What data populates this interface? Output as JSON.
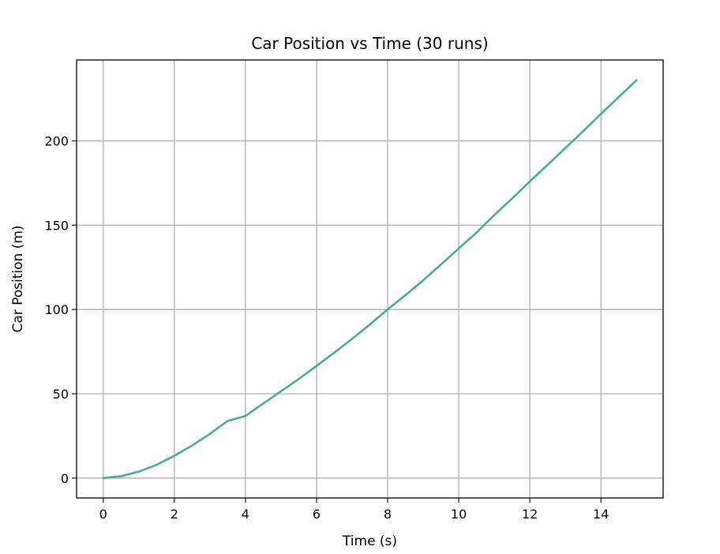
{
  "chart_data": {
    "type": "line",
    "title": "Car Position vs Time (30 runs)",
    "xlabel": "Time (s)",
    "ylabel": "Car Position (m)",
    "xlim": [
      -0.75,
      15.75
    ],
    "ylim": [
      -11.8,
      248
    ],
    "xticks": [
      0,
      2,
      4,
      6,
      8,
      10,
      12,
      14
    ],
    "yticks": [
      0,
      50,
      100,
      150,
      200
    ],
    "grid": true,
    "line_color": "#4dab94",
    "series": [
      {
        "x": [
          0,
          0.5,
          1,
          1.5,
          2,
          2.5,
          3,
          3.5,
          4,
          4.5,
          5,
          5.5,
          6,
          6.5,
          7,
          7.5,
          8,
          8.5,
          9,
          9.5,
          10,
          10.5,
          11,
          11.5,
          12,
          12.5,
          13,
          13.5,
          14,
          14.5,
          15
        ],
        "y": [
          0,
          1.1,
          3.8,
          7.9,
          13.2,
          19.3,
          26.2,
          33.9,
          36.8,
          44.2,
          51.5,
          58.8,
          66.5,
          74.4,
          82.6,
          91.1,
          100.0,
          108.5,
          117.3,
          126.7,
          136.2,
          145.6,
          156.0,
          165.8,
          176.0,
          185.8,
          195.8,
          205.8,
          216.0,
          226.0,
          236.0
        ]
      }
    ]
  }
}
